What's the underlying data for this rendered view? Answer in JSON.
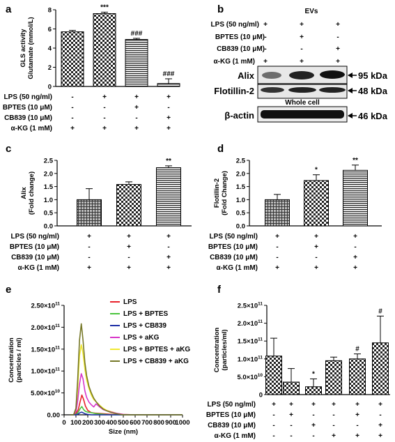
{
  "panel_letters": [
    "a",
    "b",
    "c",
    "d",
    "e",
    "f"
  ],
  "treatment_labels": {
    "lps": "LPS (50 ng/ml)",
    "bptes": "BPTES (10 μM)",
    "cb839": "CB839 (10 μM)",
    "akg": "α-KG (1 mM)"
  },
  "blot": {
    "header": "EVs",
    "bands": [
      {
        "name": "Alix",
        "size": "95 kDa"
      },
      {
        "name": "Flotillin-2",
        "size": "48 kDa"
      },
      {
        "name": "β-actin",
        "size": "46 kDa"
      }
    ],
    "section_label": "Whole cell",
    "conditions": {
      "lps": [
        "+",
        "+",
        "+"
      ],
      "bptes": [
        "-",
        "+",
        "-"
      ],
      "cb839": [
        "-",
        "-",
        "+"
      ],
      "akg": [
        "+",
        "+",
        "+"
      ]
    }
  },
  "chart_data": [
    {
      "panel": "a",
      "type": "bar",
      "ylabel": [
        "GLS activity",
        "Glutamate (mmol/L)"
      ],
      "ylim": [
        0,
        8
      ],
      "yticks": [
        0,
        2,
        4,
        6,
        8
      ],
      "ytick_labels": [
        "0",
        "2",
        "4",
        "6",
        "8"
      ],
      "values": [
        5.7,
        7.6,
        4.9,
        0.3
      ],
      "errors": [
        0.15,
        0.15,
        0.12,
        0.5
      ],
      "patterns": [
        "check",
        "check",
        "hstripe",
        "hstripe"
      ],
      "significance": [
        "",
        "***",
        "###",
        "###"
      ],
      "conditions": {
        "lps": [
          "-",
          "+",
          "+",
          "+"
        ],
        "bptes": [
          "-",
          "-",
          "+",
          "-"
        ],
        "cb839": [
          "-",
          "-",
          "-",
          "+"
        ],
        "akg": [
          "+",
          "+",
          "+",
          "+"
        ]
      }
    },
    {
      "panel": "c",
      "type": "bar",
      "ylabel": [
        "Alix",
        "(Fold change)"
      ],
      "ylim": [
        0,
        2.5
      ],
      "yticks": [
        0,
        0.5,
        1.0,
        1.5,
        2.0,
        2.5
      ],
      "ytick_labels": [
        "0.0",
        "0.5",
        "1.0",
        "1.5",
        "2.0",
        "2.5"
      ],
      "values": [
        1.0,
        1.58,
        2.22
      ],
      "errors": [
        0.42,
        0.1,
        0.07
      ],
      "patterns": [
        "grid",
        "check",
        "hstripe"
      ],
      "significance": [
        "",
        "",
        "**"
      ],
      "conditions": {
        "lps": [
          "+",
          "+",
          "+"
        ],
        "bptes": [
          "-",
          "+",
          "-"
        ],
        "cb839": [
          "-",
          "-",
          "+"
        ],
        "akg": [
          "+",
          "+",
          "+"
        ]
      }
    },
    {
      "panel": "d",
      "type": "bar",
      "ylabel": [
        "Flotillin-2",
        "(Fold Change)"
      ],
      "ylim": [
        0,
        2.5
      ],
      "yticks": [
        0,
        0.5,
        1.0,
        1.5,
        2.0,
        2.5
      ],
      "ytick_labels": [
        "0.0",
        "0.5",
        "1.0",
        "1.5",
        "2.0",
        "2.5"
      ],
      "values": [
        1.0,
        1.73,
        2.12
      ],
      "errors": [
        0.2,
        0.22,
        0.2
      ],
      "patterns": [
        "grid",
        "check",
        "hstripe"
      ],
      "significance": [
        "",
        "*",
        "**"
      ],
      "conditions": {
        "lps": [
          "+",
          "+",
          "+"
        ],
        "bptes": [
          "-",
          "+",
          "-"
        ],
        "cb839": [
          "-",
          "-",
          "+"
        ],
        "akg": [
          "+",
          "+",
          "+"
        ]
      }
    },
    {
      "panel": "e",
      "type": "line",
      "xlabel": "Size (nm)",
      "ylabel": [
        "Concentration",
        "(particles / ml)"
      ],
      "xlim": [
        0,
        1000
      ],
      "ylim": [
        0,
        250000000000.0
      ],
      "xticks": [
        0,
        100,
        200,
        300,
        400,
        500,
        600,
        700,
        800,
        900,
        1000
      ],
      "xtick_labels": [
        "0",
        "100",
        "200",
        "300",
        "400",
        "500",
        "600",
        "700",
        "800",
        "900",
        "1000"
      ],
      "yticks": [
        0,
        50000000000.0,
        100000000000.0,
        150000000000.0,
        200000000000.0,
        250000000000.0
      ],
      "ytick_labels": [
        {
          "base": "0.00",
          "exp": ""
        },
        {
          "base": "5.00×10",
          "exp": "10"
        },
        {
          "base": "1.00×10",
          "exp": "11"
        },
        {
          "base": "1.50×10",
          "exp": "11"
        },
        {
          "base": "2.00×10",
          "exp": "11"
        },
        {
          "base": "2.50×10",
          "exp": "11"
        }
      ],
      "legend_position": "top-right",
      "series": [
        {
          "name": "LPS",
          "color": "#e8202a",
          "x": [
            50,
            80,
            100,
            120,
            135,
            150,
            165,
            180,
            200,
            230,
            260,
            300,
            350,
            400,
            500,
            700,
            1000
          ],
          "y": [
            0,
            0,
            2000000000.0,
            12000000000.0,
            30000000000.0,
            45000000000.0,
            35000000000.0,
            20000000000.0,
            10000000000.0,
            5000000000.0,
            4000000000.0,
            3000000000.0,
            2000000000.0,
            1000000000.0,
            0,
            0,
            0
          ]
        },
        {
          "name": "LPS + BPTES",
          "color": "#49c43c",
          "x": [
            50,
            80,
            100,
            120,
            135,
            150,
            165,
            180,
            200,
            230,
            260,
            300,
            350,
            400,
            500,
            700,
            1000
          ],
          "y": [
            0,
            0,
            1000000000.0,
            6000000000.0,
            14000000000.0,
            19000000000.0,
            12000000000.0,
            8000000000.0,
            6000000000.0,
            5000000000.0,
            3000000000.0,
            2000000000.0,
            1000000000.0,
            0,
            0,
            0,
            0
          ]
        },
        {
          "name": "LPS + CB839",
          "color": "#1d2fa6",
          "x": [
            50,
            80,
            100,
            120,
            135,
            150,
            165,
            180,
            200,
            230,
            260,
            300,
            350,
            400,
            500,
            700,
            1000
          ],
          "y": [
            0,
            0,
            0,
            2000000000.0,
            5000000000.0,
            6000000000.0,
            4000000000.0,
            2000000000.0,
            1000000000.0,
            0,
            0,
            0,
            0,
            0,
            0,
            0,
            0
          ]
        },
        {
          "name": "LPS + aKG",
          "color": "#d736c8",
          "x": [
            50,
            80,
            100,
            115,
            130,
            145,
            160,
            175,
            190,
            210,
            230,
            250,
            270,
            300,
            330,
            360,
            400,
            450,
            500,
            600,
            1000
          ],
          "y": [
            0,
            0,
            5000000000.0,
            32000000000.0,
            70000000000.0,
            94000000000.0,
            82000000000.0,
            55000000000.0,
            40000000000.0,
            29000000000.0,
            23000000000.0,
            18000000000.0,
            25000000000.0,
            18000000000.0,
            12000000000.0,
            9000000000.0,
            6000000000.0,
            3000000000.0,
            1000000000.0,
            0,
            0
          ]
        },
        {
          "name": "LPS + BPTES + aKG",
          "color": "#f0e830",
          "x": [
            50,
            80,
            100,
            115,
            130,
            145,
            160,
            175,
            190,
            210,
            230,
            250,
            270,
            300,
            330,
            360,
            400,
            450,
            500,
            600,
            1000
          ],
          "y": [
            0,
            0,
            10000000000.0,
            60000000000.0,
            135000000000.0,
            160000000000.0,
            140000000000.0,
            105000000000.0,
            80000000000.0,
            60000000000.0,
            45000000000.0,
            35000000000.0,
            30000000000.0,
            22000000000.0,
            15000000000.0,
            10000000000.0,
            7000000000.0,
            3000000000.0,
            1000000000.0,
            0,
            0
          ]
        },
        {
          "name": "LPS + CB839 + aKG",
          "color": "#757726",
          "x": [
            50,
            80,
            100,
            115,
            130,
            145,
            160,
            175,
            190,
            210,
            230,
            250,
            270,
            300,
            330,
            360,
            400,
            450,
            500,
            600,
            1000
          ],
          "y": [
            0,
            0,
            15000000000.0,
            80000000000.0,
            170000000000.0,
            208000000000.0,
            170000000000.0,
            120000000000.0,
            90000000000.0,
            65000000000.0,
            50000000000.0,
            38000000000.0,
            30000000000.0,
            20000000000.0,
            13000000000.0,
            9000000000.0,
            5000000000.0,
            2000000000.0,
            0,
            0,
            0
          ]
        }
      ]
    },
    {
      "panel": "f",
      "type": "bar",
      "ylabel": [
        "Concentration",
        "(particles/ml)"
      ],
      "ylim": [
        0,
        250000000000.0
      ],
      "yticks": [
        0,
        50000000000.0,
        100000000000.0,
        150000000000.0,
        200000000000.0,
        250000000000.0
      ],
      "ytick_labels": [
        {
          "base": "0",
          "exp": ""
        },
        {
          "base": "5.0×10",
          "exp": "10"
        },
        {
          "base": "1.0×10",
          "exp": "11"
        },
        {
          "base": "1.5×10",
          "exp": "11"
        },
        {
          "base": "2.0×10",
          "exp": "11"
        },
        {
          "base": "2.5×10",
          "exp": "11"
        }
      ],
      "values": [
        108000000000.0,
        35000000000.0,
        22000000000.0,
        95000000000.0,
        100000000000.0,
        145000000000.0
      ],
      "errors": [
        50000000000.0,
        38000000000.0,
        22000000000.0,
        10000000000.0,
        14000000000.0,
        75000000000.0
      ],
      "patterns": [
        "check",
        "check",
        "check",
        "check",
        "check",
        "check"
      ],
      "significance": [
        "",
        "",
        "*",
        "",
        "#",
        "#"
      ],
      "conditions": {
        "lps": [
          "+",
          "+",
          "+",
          "+",
          "+",
          "+"
        ],
        "bptes": [
          "-",
          "+",
          "-",
          "-",
          "+",
          "-"
        ],
        "cb839": [
          "-",
          "-",
          "+",
          "-",
          "-",
          "+"
        ],
        "akg": [
          "-",
          "-",
          "-",
          "+",
          "+",
          "+"
        ]
      }
    }
  ]
}
